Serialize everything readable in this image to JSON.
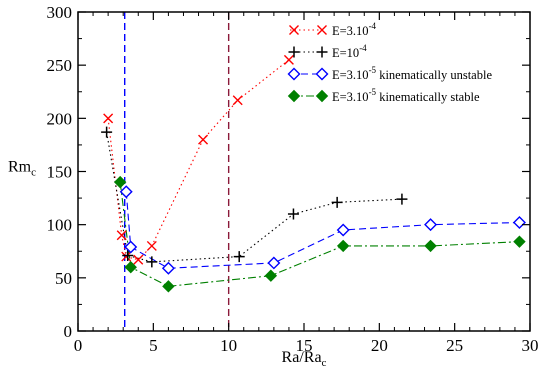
{
  "chart_data": {
    "type": "scatter",
    "xlabel": "Ra/Ra",
    "xlabel_sub": "c",
    "ylabel": "Rm",
    "ylabel_sub": "c",
    "xlim": [
      0,
      30
    ],
    "ylim": [
      0,
      300
    ],
    "xticks": [
      "0",
      "5",
      "10",
      "15",
      "20",
      "25",
      "30"
    ],
    "yticks": [
      "0",
      "50",
      "100",
      "150",
      "200",
      "250",
      "300"
    ],
    "legend_position": "top-right",
    "grid": false,
    "vertical_lines": [
      {
        "x": 3.1,
        "color": "#0000ff",
        "style": "dashed"
      },
      {
        "x": 10.0,
        "color": "#8b1a3a",
        "style": "dashed"
      }
    ],
    "series": [
      {
        "legend_base": "E=3.10",
        "legend_sup": "-4",
        "legend_tail": "",
        "color": "#ff0000",
        "marker": "x",
        "line_style": "dotted",
        "x": [
          2.0,
          2.9,
          3.2,
          4.0,
          4.9,
          8.3,
          10.6,
          14.0
        ],
        "y": [
          200,
          90,
          70,
          67,
          80,
          180,
          217,
          255
        ]
      },
      {
        "legend_base": "E=10",
        "legend_sup": "-4",
        "legend_tail": "",
        "color": "#000000",
        "marker": "plus",
        "line_style": "dotted",
        "x": [
          1.9,
          3.3,
          4.9,
          10.7,
          14.3,
          17.2,
          21.5
        ],
        "y": [
          187,
          71,
          65,
          70,
          110,
          121,
          124
        ]
      },
      {
        "legend_base": "E=3.10",
        "legend_sup": "-5",
        "legend_tail": " kinematically unstable",
        "color": "#0000ff",
        "marker": "diamond-open",
        "line_style": "dashed",
        "x": [
          3.2,
          3.5,
          6.0,
          13.0,
          17.6,
          23.4,
          29.3
        ],
        "y": [
          131,
          79,
          59,
          64,
          95,
          100,
          102
        ]
      },
      {
        "legend_base": "E=3.10",
        "legend_sup": "-5",
        "legend_tail": " kinematically stable",
        "color": "#008000",
        "marker": "diamond-filled",
        "line_style": "dashdot",
        "x": [
          2.8,
          3.5,
          6.0,
          12.8,
          17.6,
          23.4,
          29.3
        ],
        "y": [
          140,
          60,
          42,
          52,
          80,
          80,
          84
        ]
      }
    ]
  }
}
